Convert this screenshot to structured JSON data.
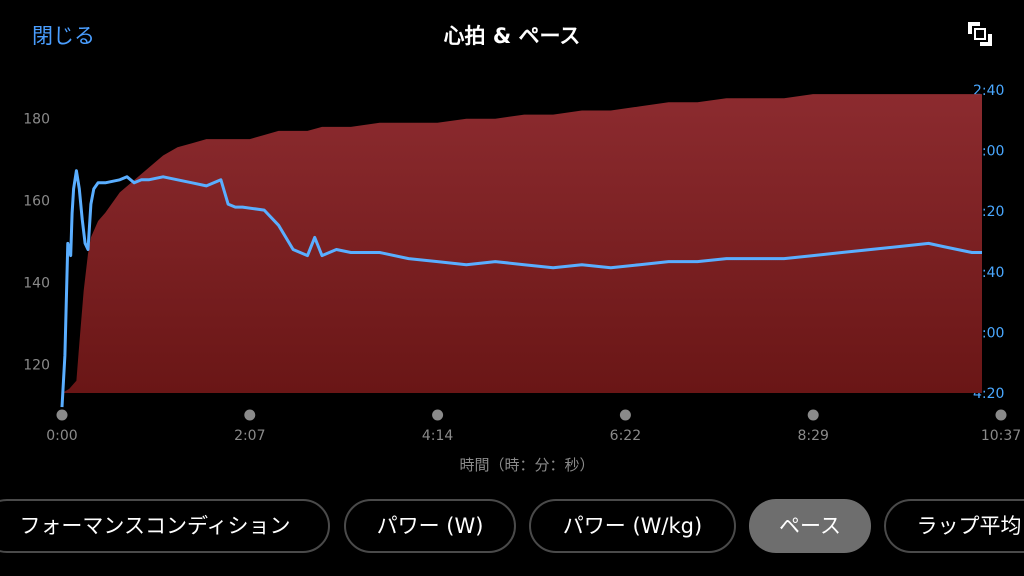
{
  "header": {
    "close_label": "閉じる",
    "title": "心拍 & ペース",
    "expand_icon": "expand-icon"
  },
  "colors": {
    "heart_rate_fill_top": "#8c2b2f",
    "heart_rate_fill_bottom": "#6a1616",
    "pace_line": "#5aaeff",
    "accent": "#4a9eff"
  },
  "chart_data": {
    "type": "area",
    "xlabel": "時間（時：分：秒）",
    "x_ticks": [
      "0:00",
      "2:07",
      "4:14",
      "6:22",
      "8:29",
      "10:37"
    ],
    "x_range": [
      0,
      637
    ],
    "left_axis": {
      "ticks": [
        "120",
        "140",
        "160",
        "180"
      ],
      "range": [
        113,
        187
      ]
    },
    "right_axis": {
      "ticks": [
        "2:40",
        "3:00",
        "3:20",
        "3:40",
        "4:00",
        "4:20"
      ],
      "range_sec_per_km": [
        160,
        260
      ],
      "inverted": true
    },
    "series": [
      {
        "type": "area",
        "values_x_sec": [
          0,
          5,
          10,
          12,
          15,
          18,
          20,
          25,
          30,
          40,
          50,
          60,
          70,
          80,
          90,
          100,
          110,
          120,
          130,
          140,
          150,
          160,
          170,
          180,
          190,
          200,
          220,
          240,
          260,
          280,
          300,
          320,
          340,
          360,
          380,
          400,
          420,
          440,
          460,
          480,
          500,
          520,
          540,
          560,
          580,
          600,
          620,
          637
        ],
        "values_y_bpm": [
          113,
          114,
          116,
          125,
          138,
          147,
          151,
          155,
          157,
          162,
          165,
          168,
          171,
          173,
          174,
          175,
          175,
          175,
          175,
          176,
          177,
          177,
          177,
          178,
          178,
          178,
          179,
          179,
          179,
          180,
          180,
          181,
          181,
          182,
          182,
          183,
          184,
          184,
          185,
          185,
          185,
          186,
          186,
          186,
          186,
          186,
          186,
          186
        ]
      },
      {
        "type": "line",
        "values_x_sec": [
          0,
          2,
          4,
          6,
          7,
          8,
          10,
          12,
          14,
          16,
          18,
          20,
          22,
          25,
          30,
          40,
          45,
          50,
          55,
          60,
          70,
          80,
          90,
          100,
          110,
          115,
          120,
          125,
          140,
          150,
          160,
          170,
          175,
          180,
          190,
          200,
          220,
          240,
          260,
          280,
          300,
          320,
          340,
          360,
          380,
          400,
          420,
          440,
          460,
          480,
          500,
          520,
          540,
          560,
          580,
          600,
          610,
          620,
          630,
          637
        ],
        "values_y_sec_per_km": [
          262,
          245,
          208,
          212,
          198,
          190,
          184,
          190,
          200,
          208,
          210,
          195,
          190,
          188,
          188,
          187,
          186,
          188,
          187,
          187,
          186,
          187,
          188,
          189,
          187,
          195,
          196,
          196,
          197,
          202,
          210,
          212,
          206,
          212,
          210,
          211,
          211,
          213,
          214,
          215,
          214,
          215,
          216,
          215,
          216,
          215,
          214,
          214,
          213,
          213,
          213,
          212,
          211,
          210,
          209,
          208,
          209,
          210,
          211,
          211
        ]
      }
    ]
  },
  "tabs": [
    {
      "label": "フォーマンスコンディション",
      "active": false
    },
    {
      "label": "パワー (W)",
      "active": false
    },
    {
      "label": "パワー (W/kg)",
      "active": false
    },
    {
      "label": "ペース",
      "active": true
    },
    {
      "label": "ラップ平均",
      "active": false
    }
  ]
}
